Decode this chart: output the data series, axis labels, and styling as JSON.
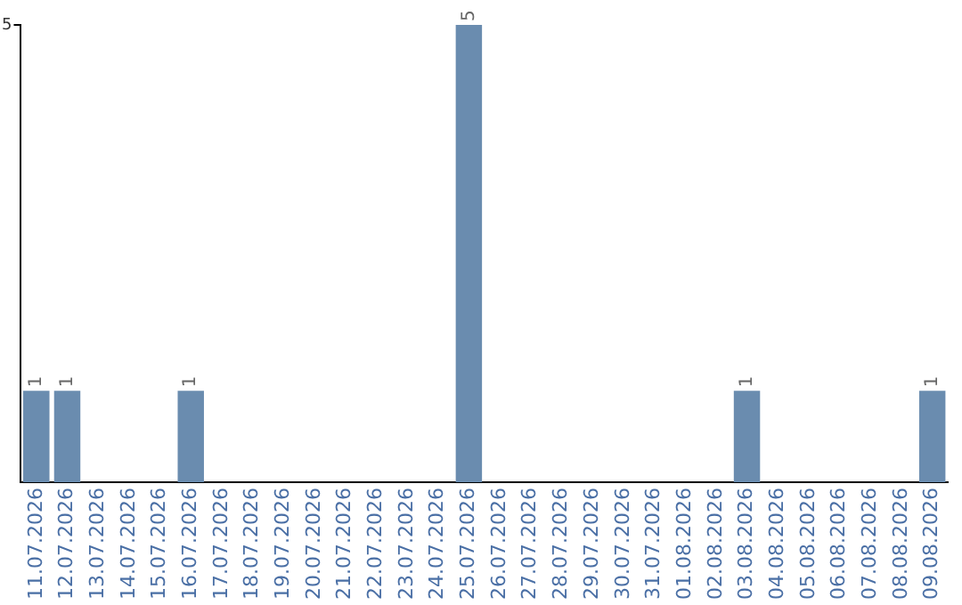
{
  "chart_data": {
    "type": "bar",
    "categories": [
      "11.07.2026",
      "12.07.2026",
      "13.07.2026",
      "14.07.2026",
      "15.07.2026",
      "16.07.2026",
      "17.07.2026",
      "18.07.2026",
      "19.07.2026",
      "20.07.2026",
      "21.07.2026",
      "22.07.2026",
      "23.07.2026",
      "24.07.2026",
      "25.07.2026",
      "26.07.2026",
      "27.07.2026",
      "28.07.2026",
      "29.07.2026",
      "30.07.2026",
      "31.07.2026",
      "01.08.2026",
      "02.08.2026",
      "03.08.2026",
      "04.08.2026",
      "05.08.2026",
      "06.08.2026",
      "07.08.2026",
      "08.08.2026",
      "09.08.2026"
    ],
    "values": [
      1,
      1,
      0,
      0,
      0,
      1,
      0,
      0,
      0,
      0,
      0,
      0,
      0,
      0,
      5,
      0,
      0,
      0,
      0,
      0,
      0,
      0,
      0,
      1,
      0,
      0,
      0,
      0,
      0,
      1
    ],
    "value_labels": [
      "1",
      "1",
      null,
      null,
      null,
      "1",
      null,
      null,
      null,
      null,
      null,
      null,
      null,
      null,
      "5",
      null,
      null,
      null,
      null,
      null,
      null,
      null,
      null,
      "1",
      null,
      null,
      null,
      null,
      null,
      "1"
    ],
    "color": "#6a8caf",
    "ylim": [
      0,
      5
    ],
    "yticks": [
      5
    ],
    "legend": false
  }
}
